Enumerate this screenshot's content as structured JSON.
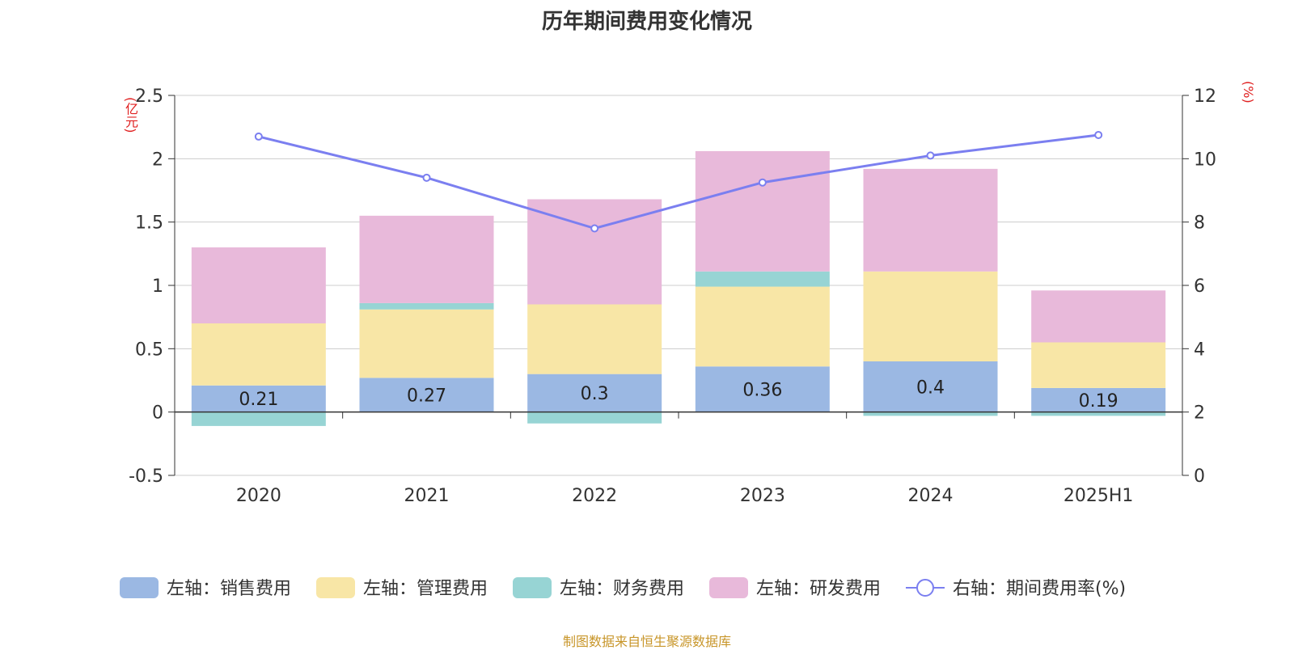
{
  "title": "历年期间费用变化情况",
  "source": "制图数据来自恒生聚源数据库",
  "units": {
    "left": "(亿元)",
    "right": "(%)"
  },
  "chart_data": {
    "type": "bar",
    "stacked": true,
    "categories": [
      "2020",
      "2021",
      "2022",
      "2023",
      "2024",
      "2025H1"
    ],
    "y_left": {
      "min": -0.5,
      "max": 2.5,
      "ticks": [
        "-0.5",
        "0",
        "0.5",
        "1",
        "1.5",
        "2",
        "2.5"
      ]
    },
    "y_right": {
      "min": 0,
      "max": 12,
      "ticks": [
        "0",
        "2",
        "4",
        "6",
        "8",
        "10",
        "12"
      ]
    },
    "grid": true,
    "legend_position": "bottom",
    "series": [
      {
        "name": "左轴：销售费用",
        "color": "#9bb8e3",
        "values": [
          0.21,
          0.27,
          0.3,
          0.36,
          0.4,
          0.19
        ],
        "labels": [
          "0.21",
          "0.27",
          "0.3",
          "0.36",
          "0.4",
          "0.19"
        ]
      },
      {
        "name": "左轴：管理费用",
        "color": "#f8e6a6",
        "values": [
          0.49,
          0.54,
          0.55,
          0.63,
          0.71,
          0.36
        ]
      },
      {
        "name": "左轴：财务费用",
        "color": "#97d4d4",
        "values": [
          -0.11,
          0.05,
          -0.09,
          0.12,
          -0.03,
          -0.03
        ]
      },
      {
        "name": "左轴：研发费用",
        "color": "#e8b9da",
        "values": [
          0.6,
          0.69,
          0.83,
          0.95,
          0.81,
          0.41
        ]
      },
      {
        "name": "右轴：期间费用率(%)",
        "type": "line",
        "axis": "right",
        "color": "#7b7ff0",
        "values": [
          10.7,
          9.4,
          7.8,
          9.25,
          10.1,
          10.75
        ]
      }
    ]
  }
}
